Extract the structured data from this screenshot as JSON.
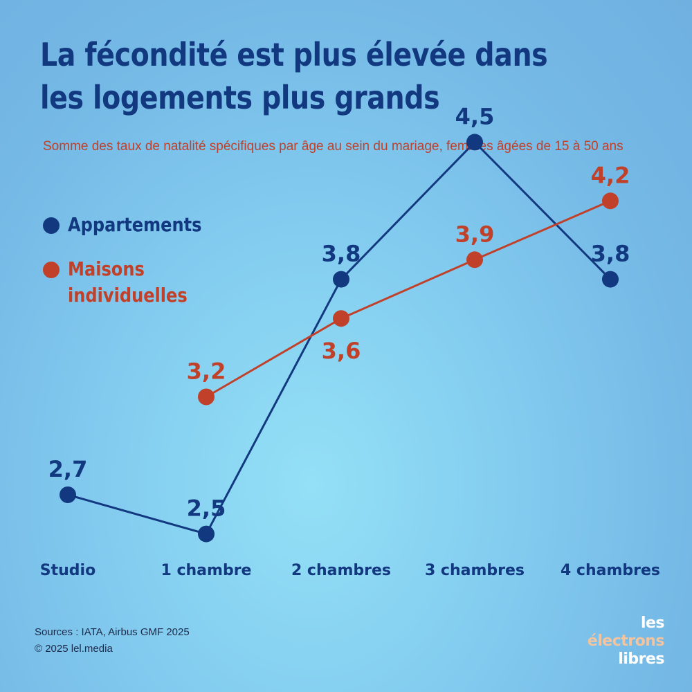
{
  "title": "La fécondité est plus élevée dans les logements plus grands",
  "subtitle": "Somme des taux de natalité spécifiques par âge au sein du mariage, femmes âgées de 15 à 50 ans",
  "legend": {
    "appartements": "Appartements",
    "maisons": "Maisons individuelles"
  },
  "footer": {
    "sources": "Sources : IATA, Airbus GMF 2025",
    "copyright": "© 2025 lel.media"
  },
  "logo": {
    "line1_prefix": "les ",
    "line1_accent": "électrons",
    "line2": "libres"
  },
  "colors": {
    "appartements": "#12387f",
    "maisons": "#c0402a"
  },
  "chart_data": {
    "type": "line",
    "categories": [
      "Studio",
      "1 chambre",
      "2 chambres",
      "3 chambres",
      "4 chambres"
    ],
    "series": [
      {
        "name": "Appartements",
        "values": [
          2.7,
          2.5,
          3.8,
          4.5,
          3.8
        ],
        "labels": [
          "2,7",
          "2,5",
          "3,8",
          "4,5",
          "3,8"
        ]
      },
      {
        "name": "Maisons individuelles",
        "values": [
          null,
          3.2,
          3.6,
          3.9,
          4.2
        ],
        "labels": [
          null,
          "3,2",
          "3,6",
          "3,9",
          "4,2"
        ]
      }
    ],
    "ylim": [
      2.4,
      4.6
    ],
    "grid": false,
    "legend_position": "top-left"
  }
}
